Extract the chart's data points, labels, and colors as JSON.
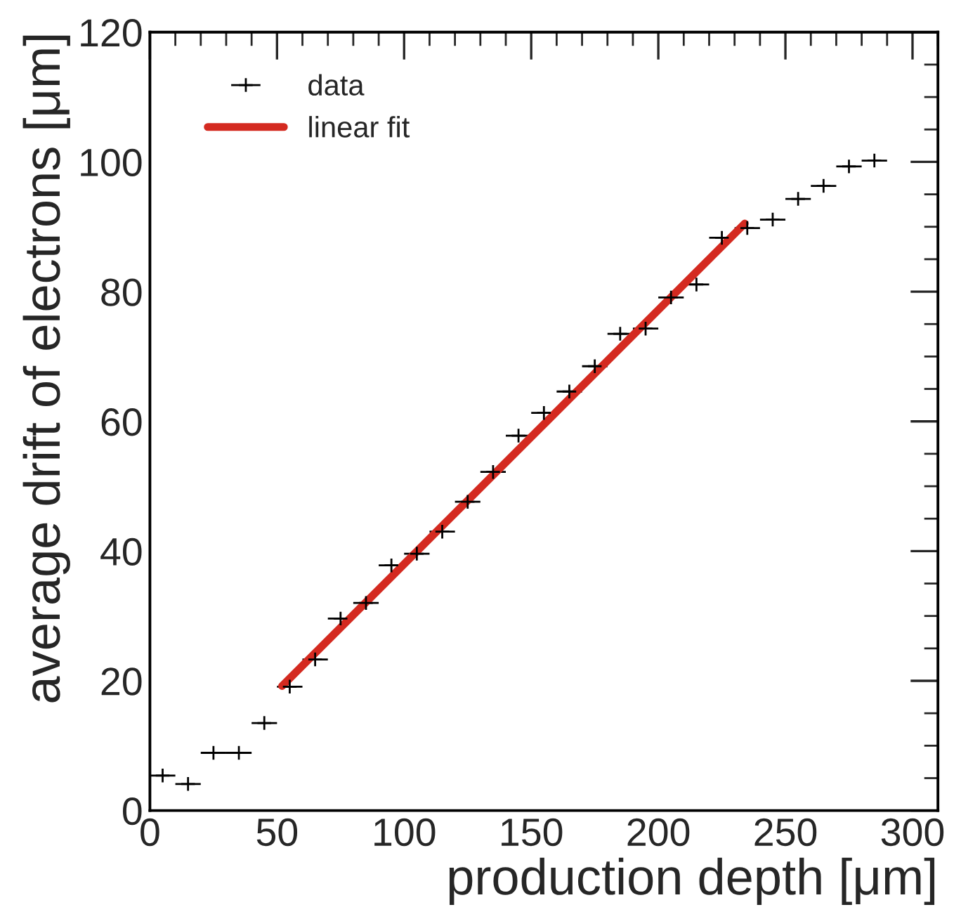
{
  "chart_data": {
    "type": "scatter",
    "xlabel": "production depth [μm]",
    "ylabel": "average drift of electrons [μm]",
    "series": [
      {
        "name": "data",
        "color": "#000000",
        "marker": "cross",
        "x": [
          5,
          15,
          25,
          35,
          45,
          55,
          65,
          75,
          85,
          95,
          105,
          115,
          125,
          135,
          145,
          155,
          165,
          175,
          185,
          195,
          205,
          215,
          225,
          235,
          245,
          255,
          265,
          275,
          285
        ],
        "values": [
          5.4,
          4.1,
          8.9,
          8.9,
          13.5,
          19.1,
          23.3,
          29.6,
          32.0,
          37.8,
          39.6,
          43.0,
          47.6,
          52.2,
          57.8,
          61.3,
          64.6,
          68.5,
          73.5,
          74.3,
          79.1,
          81.1,
          88.3,
          89.8,
          91.1,
          94.3,
          96.3,
          99.3,
          100.2
        ],
        "xerrors": [
          5,
          5,
          5,
          5,
          5,
          5,
          5,
          5,
          5,
          5,
          5,
          5,
          5,
          5,
          5,
          5,
          5,
          5,
          5,
          5,
          5,
          5,
          5,
          5,
          5,
          5,
          5,
          5,
          5
        ]
      },
      {
        "name": "linear fit",
        "type": "line",
        "color": "#d42a20",
        "line_style": "solid",
        "x": [
          52,
          234
        ],
        "values": [
          19.2,
          90.5
        ]
      }
    ],
    "xlim": [
      0,
      310
    ],
    "ylim": [
      0,
      120
    ],
    "xticks": [
      0,
      50,
      100,
      150,
      200,
      250,
      300
    ],
    "yticks": [
      0,
      20,
      40,
      60,
      80,
      100,
      120
    ],
    "grid": false,
    "legend": "top left"
  }
}
